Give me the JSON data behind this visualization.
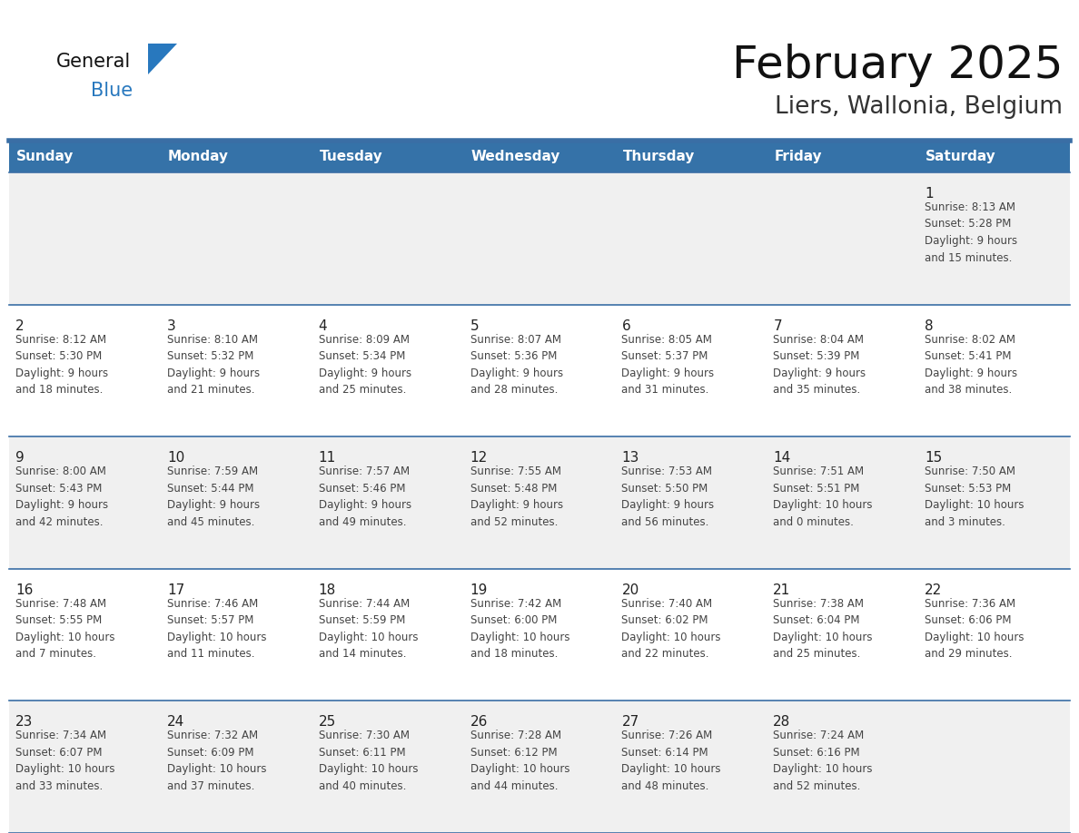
{
  "title": "February 2025",
  "subtitle": "Liers, Wallonia, Belgium",
  "days_of_week": [
    "Sunday",
    "Monday",
    "Tuesday",
    "Wednesday",
    "Thursday",
    "Friday",
    "Saturday"
  ],
  "header_bg": "#3572a8",
  "header_text": "#ffffff",
  "row_bg_week1": "#f0f0f0",
  "row_bg_week2": "#ffffff",
  "row_bg_week3": "#f0f0f0",
  "row_bg_week4": "#ffffff",
  "row_bg_week5": "#f0f0f0",
  "cell_text_color": "#444444",
  "day_num_color": "#222222",
  "divider_color": "#3a6ea5",
  "border_color": "#3a6ea5",
  "title_color": "#111111",
  "subtitle_color": "#333333",
  "logo_general_color": "#111111",
  "logo_blue_color": "#2878be",
  "calendar_data": [
    [
      {
        "day": null,
        "info": null
      },
      {
        "day": null,
        "info": null
      },
      {
        "day": null,
        "info": null
      },
      {
        "day": null,
        "info": null
      },
      {
        "day": null,
        "info": null
      },
      {
        "day": null,
        "info": null
      },
      {
        "day": 1,
        "info": "Sunrise: 8:13 AM\nSunset: 5:28 PM\nDaylight: 9 hours\nand 15 minutes."
      }
    ],
    [
      {
        "day": 2,
        "info": "Sunrise: 8:12 AM\nSunset: 5:30 PM\nDaylight: 9 hours\nand 18 minutes."
      },
      {
        "day": 3,
        "info": "Sunrise: 8:10 AM\nSunset: 5:32 PM\nDaylight: 9 hours\nand 21 minutes."
      },
      {
        "day": 4,
        "info": "Sunrise: 8:09 AM\nSunset: 5:34 PM\nDaylight: 9 hours\nand 25 minutes."
      },
      {
        "day": 5,
        "info": "Sunrise: 8:07 AM\nSunset: 5:36 PM\nDaylight: 9 hours\nand 28 minutes."
      },
      {
        "day": 6,
        "info": "Sunrise: 8:05 AM\nSunset: 5:37 PM\nDaylight: 9 hours\nand 31 minutes."
      },
      {
        "day": 7,
        "info": "Sunrise: 8:04 AM\nSunset: 5:39 PM\nDaylight: 9 hours\nand 35 minutes."
      },
      {
        "day": 8,
        "info": "Sunrise: 8:02 AM\nSunset: 5:41 PM\nDaylight: 9 hours\nand 38 minutes."
      }
    ],
    [
      {
        "day": 9,
        "info": "Sunrise: 8:00 AM\nSunset: 5:43 PM\nDaylight: 9 hours\nand 42 minutes."
      },
      {
        "day": 10,
        "info": "Sunrise: 7:59 AM\nSunset: 5:44 PM\nDaylight: 9 hours\nand 45 minutes."
      },
      {
        "day": 11,
        "info": "Sunrise: 7:57 AM\nSunset: 5:46 PM\nDaylight: 9 hours\nand 49 minutes."
      },
      {
        "day": 12,
        "info": "Sunrise: 7:55 AM\nSunset: 5:48 PM\nDaylight: 9 hours\nand 52 minutes."
      },
      {
        "day": 13,
        "info": "Sunrise: 7:53 AM\nSunset: 5:50 PM\nDaylight: 9 hours\nand 56 minutes."
      },
      {
        "day": 14,
        "info": "Sunrise: 7:51 AM\nSunset: 5:51 PM\nDaylight: 10 hours\nand 0 minutes."
      },
      {
        "day": 15,
        "info": "Sunrise: 7:50 AM\nSunset: 5:53 PM\nDaylight: 10 hours\nand 3 minutes."
      }
    ],
    [
      {
        "day": 16,
        "info": "Sunrise: 7:48 AM\nSunset: 5:55 PM\nDaylight: 10 hours\nand 7 minutes."
      },
      {
        "day": 17,
        "info": "Sunrise: 7:46 AM\nSunset: 5:57 PM\nDaylight: 10 hours\nand 11 minutes."
      },
      {
        "day": 18,
        "info": "Sunrise: 7:44 AM\nSunset: 5:59 PM\nDaylight: 10 hours\nand 14 minutes."
      },
      {
        "day": 19,
        "info": "Sunrise: 7:42 AM\nSunset: 6:00 PM\nDaylight: 10 hours\nand 18 minutes."
      },
      {
        "day": 20,
        "info": "Sunrise: 7:40 AM\nSunset: 6:02 PM\nDaylight: 10 hours\nand 22 minutes."
      },
      {
        "day": 21,
        "info": "Sunrise: 7:38 AM\nSunset: 6:04 PM\nDaylight: 10 hours\nand 25 minutes."
      },
      {
        "day": 22,
        "info": "Sunrise: 7:36 AM\nSunset: 6:06 PM\nDaylight: 10 hours\nand 29 minutes."
      }
    ],
    [
      {
        "day": 23,
        "info": "Sunrise: 7:34 AM\nSunset: 6:07 PM\nDaylight: 10 hours\nand 33 minutes."
      },
      {
        "day": 24,
        "info": "Sunrise: 7:32 AM\nSunset: 6:09 PM\nDaylight: 10 hours\nand 37 minutes."
      },
      {
        "day": 25,
        "info": "Sunrise: 7:30 AM\nSunset: 6:11 PM\nDaylight: 10 hours\nand 40 minutes."
      },
      {
        "day": 26,
        "info": "Sunrise: 7:28 AM\nSunset: 6:12 PM\nDaylight: 10 hours\nand 44 minutes."
      },
      {
        "day": 27,
        "info": "Sunrise: 7:26 AM\nSunset: 6:14 PM\nDaylight: 10 hours\nand 48 minutes."
      },
      {
        "day": 28,
        "info": "Sunrise: 7:24 AM\nSunset: 6:16 PM\nDaylight: 10 hours\nand 52 minutes."
      },
      {
        "day": null,
        "info": null
      }
    ]
  ],
  "row_backgrounds": [
    "#f0f0f0",
    "#ffffff",
    "#f0f0f0",
    "#ffffff",
    "#f0f0f0"
  ]
}
